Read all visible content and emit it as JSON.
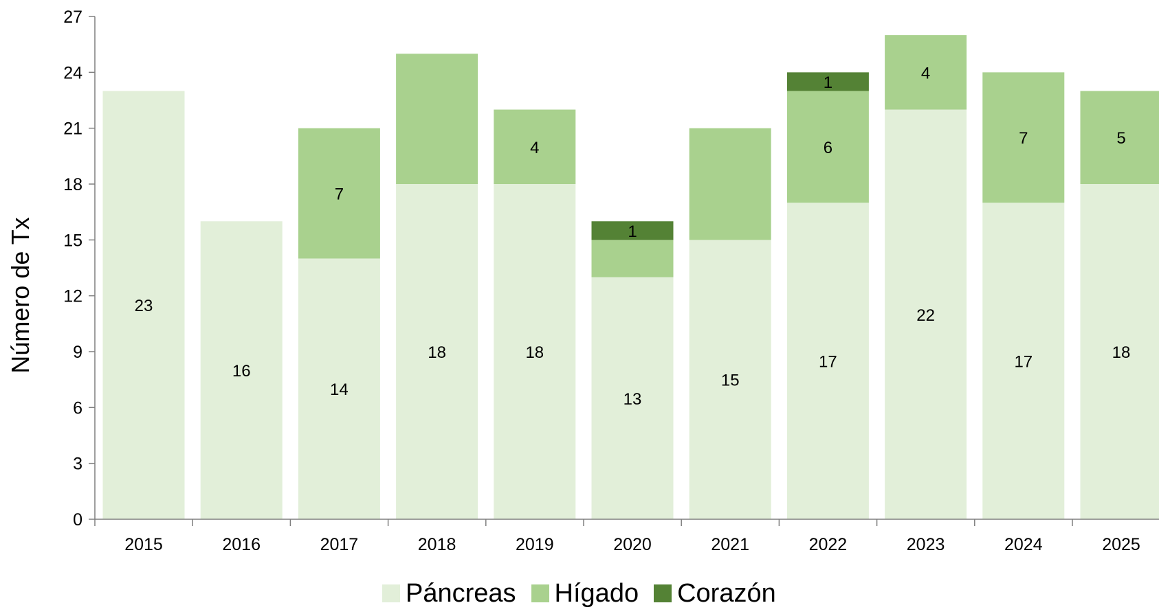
{
  "chart_data": {
    "type": "bar",
    "stacked": true,
    "ylabel": "Número de Tx",
    "xlabel": "",
    "ylim": [
      0,
      27
    ],
    "yticks": [
      0,
      3,
      6,
      9,
      12,
      15,
      18,
      21,
      24,
      27
    ],
    "categories": [
      "2015",
      "2016",
      "2017",
      "2018",
      "2019",
      "2020",
      "2021",
      "2022",
      "2023",
      "2024",
      "2025"
    ],
    "series": [
      {
        "name": "Páncreas",
        "color": "#e2efd9",
        "values": [
          23,
          16,
          14,
          18,
          18,
          13,
          15,
          17,
          22,
          17,
          18
        ]
      },
      {
        "name": "Hígado",
        "color": "#a9d18e",
        "values": [
          0,
          0,
          7,
          7,
          4,
          2,
          6,
          6,
          4,
          7,
          5
        ]
      },
      {
        "name": "Corazón",
        "color": "#548235",
        "values": [
          0,
          0,
          0,
          0,
          0,
          1,
          0,
          1,
          0,
          0,
          0
        ]
      }
    ],
    "data_labels": [
      [
        "23",
        "16",
        "14",
        "18",
        "18",
        "13",
        "15",
        "17",
        "22",
        "17",
        "18"
      ],
      [
        "",
        "",
        "7",
        "",
        "4",
        "",
        "",
        "6",
        "4",
        "7",
        "5"
      ],
      [
        "",
        "",
        "",
        "",
        "",
        "1",
        "",
        "1",
        "",
        "",
        ""
      ]
    ],
    "grid": false,
    "legend_position": "bottom"
  }
}
